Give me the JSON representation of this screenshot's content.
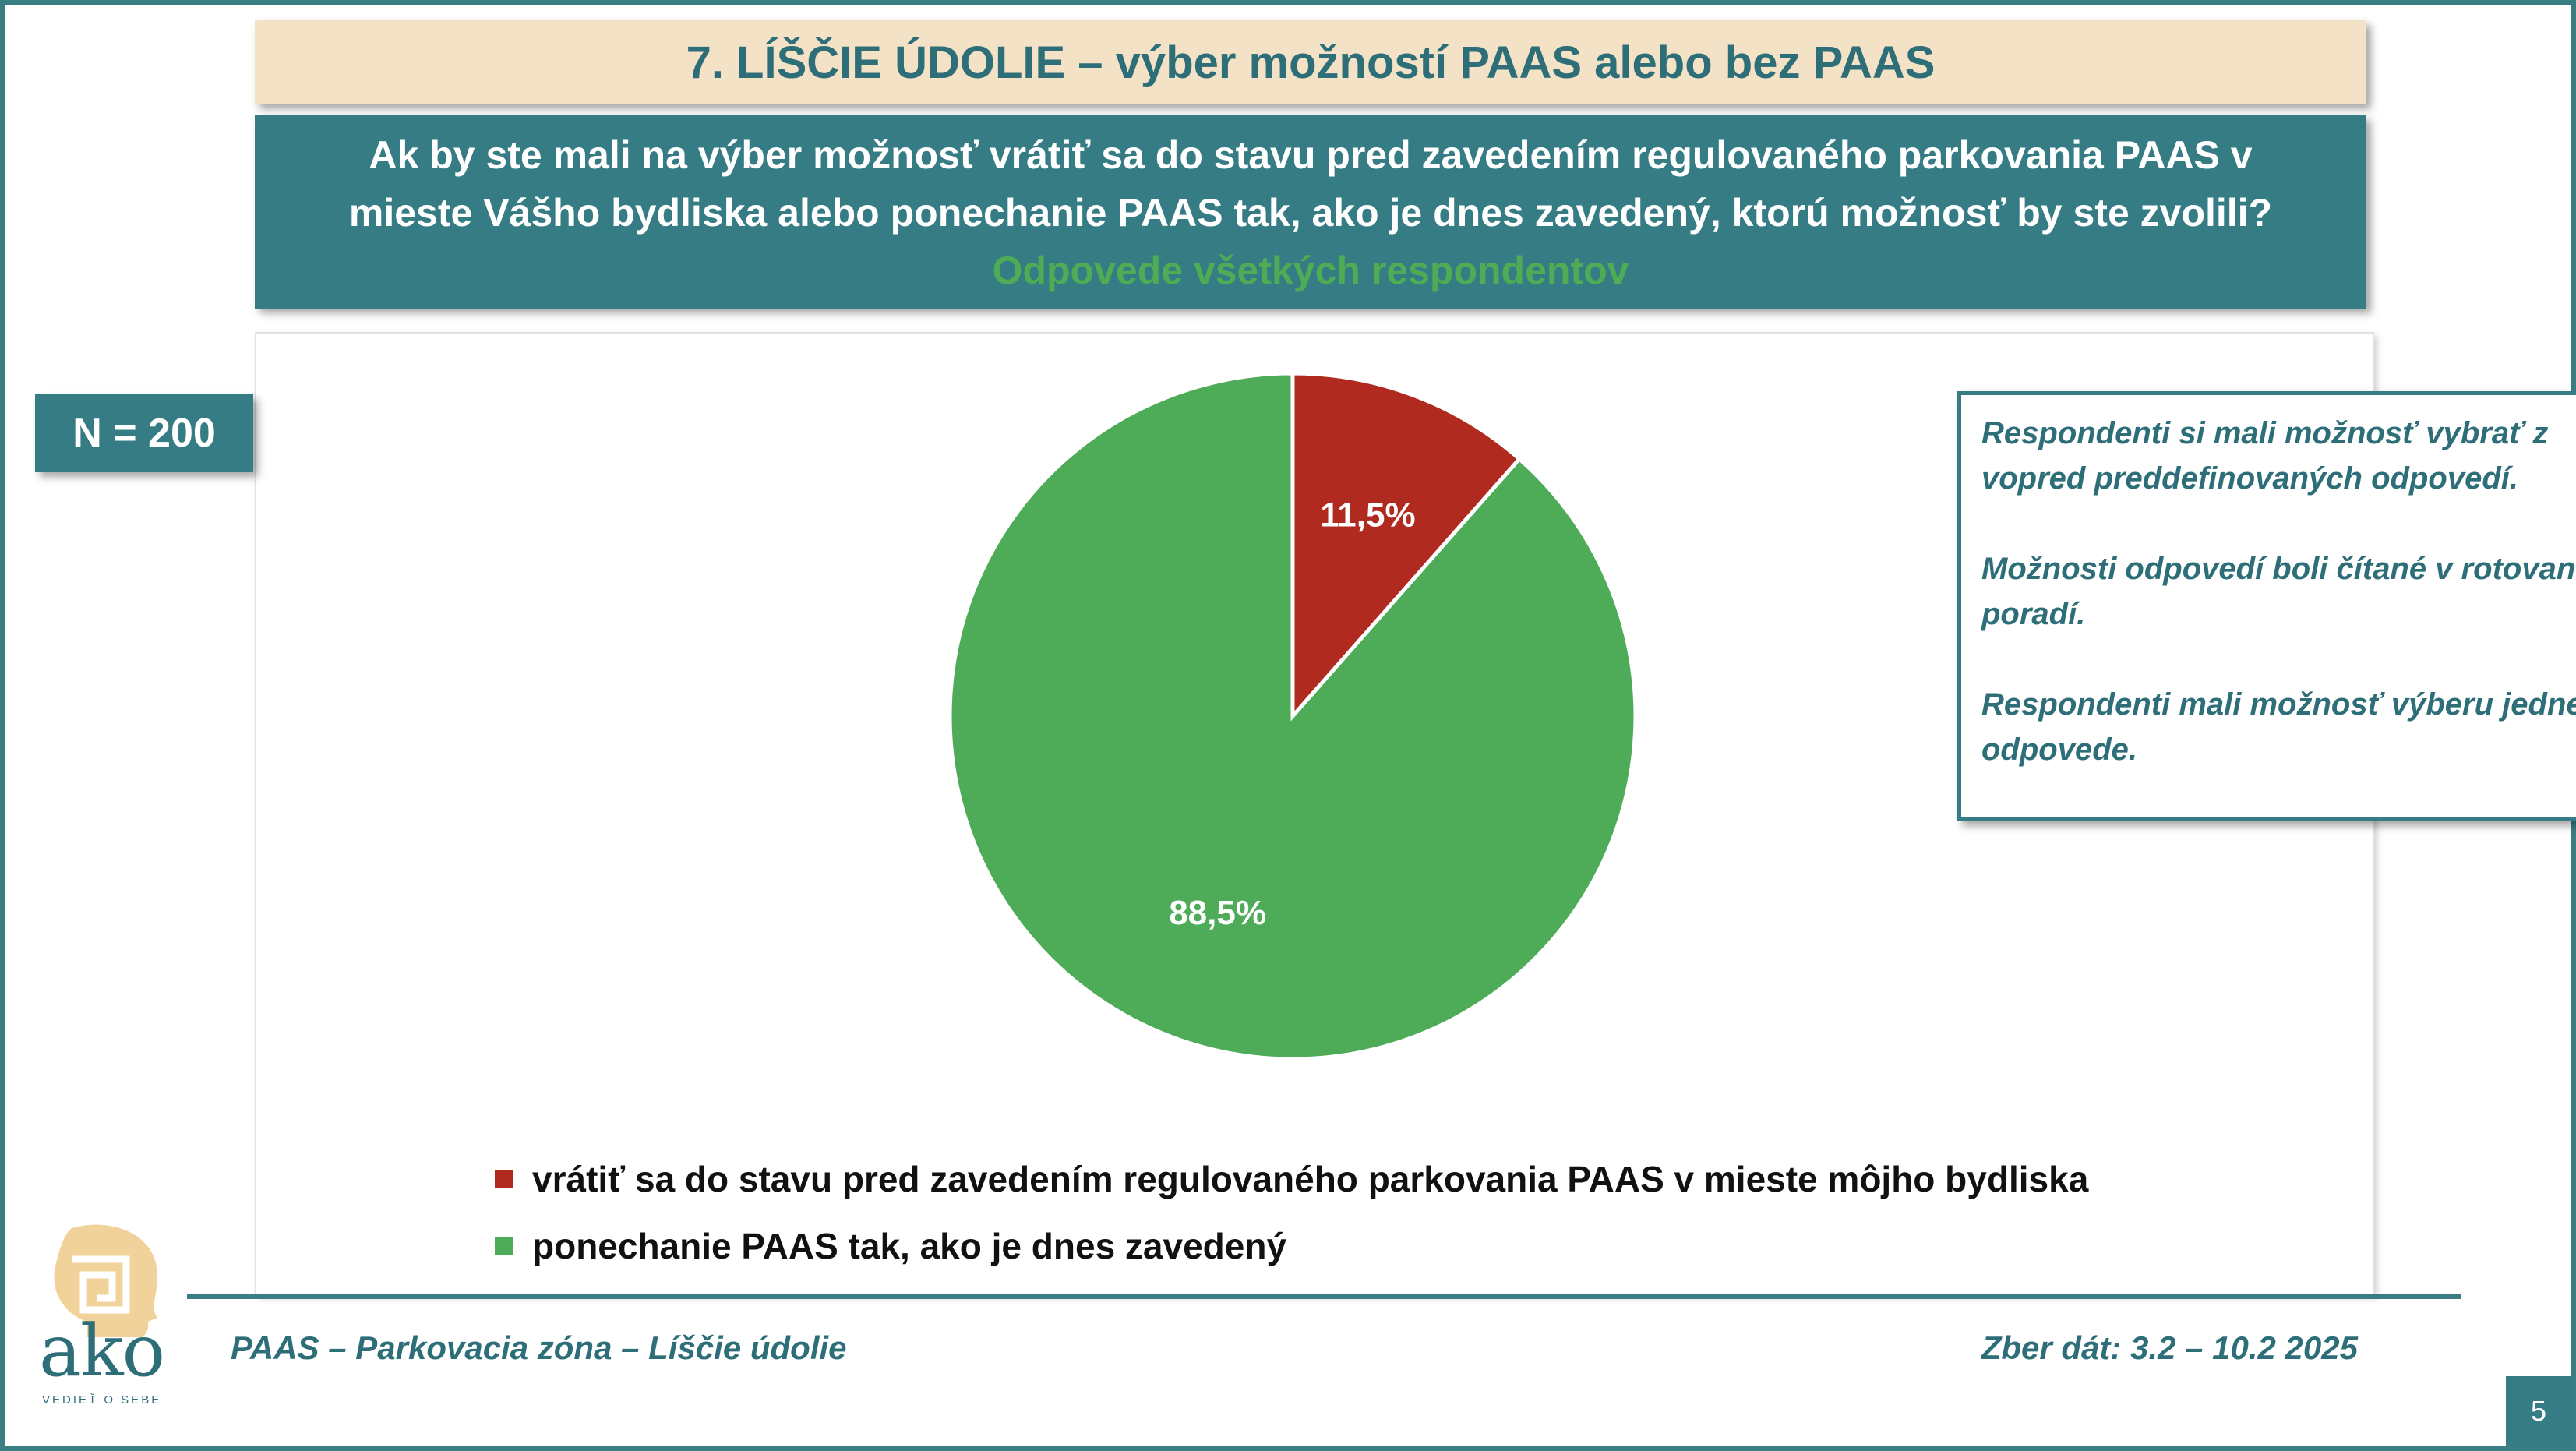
{
  "header": {
    "title": "7. LÍŠČIE ÚDOLIE – výber možností PAAS alebo bez PAAS",
    "question_line1": "Ak by ste mali na výber možnosť vrátiť sa do stavu pred zavedením regulovaného parkovania PAAS  v",
    "question_line2": "mieste Vášho bydliska alebo ponechanie PAAS tak, ako je dnes zavedený, ktorú možnosť by ste zvolili?",
    "subtitle": "Odpovede všetkých respondentov"
  },
  "sample": {
    "label": "N = 200"
  },
  "note": {
    "p1": "Respondenti si mali možnosť vybrať z vopred preddefinovaných odpovedí.",
    "p2": "Možnosti odpovedí boli čítané v rotovanom poradí.",
    "p3": "Respondenti mali možnosť výberu jednej odpovede."
  },
  "chart_data": {
    "type": "pie",
    "categories": [
      "vrátiť sa do stavu pred zavedením regulovaného parkovania PAAS v mieste môjho bydliska",
      "ponechanie PAAS tak, ako je dnes zavedený"
    ],
    "values": [
      11.5,
      88.5
    ],
    "labels": [
      "11,5%",
      "88,5%"
    ],
    "colors": [
      "#b12a1f",
      "#4eab58"
    ],
    "legend_position": "bottom",
    "start_angle_deg": 0,
    "direction": "clockwise"
  },
  "footer": {
    "left": "PAAS – Parkovacia zóna – Líščie údolie",
    "right": "Zber dát: 3.2 – 10.2 2025",
    "page": "5"
  },
  "logo": {
    "name": "ako",
    "tagline": "VEDIEŤ O SEBE"
  },
  "colors": {
    "teal": "#367c84",
    "beige": "#f3e2c5",
    "green_text": "#4dac54"
  }
}
